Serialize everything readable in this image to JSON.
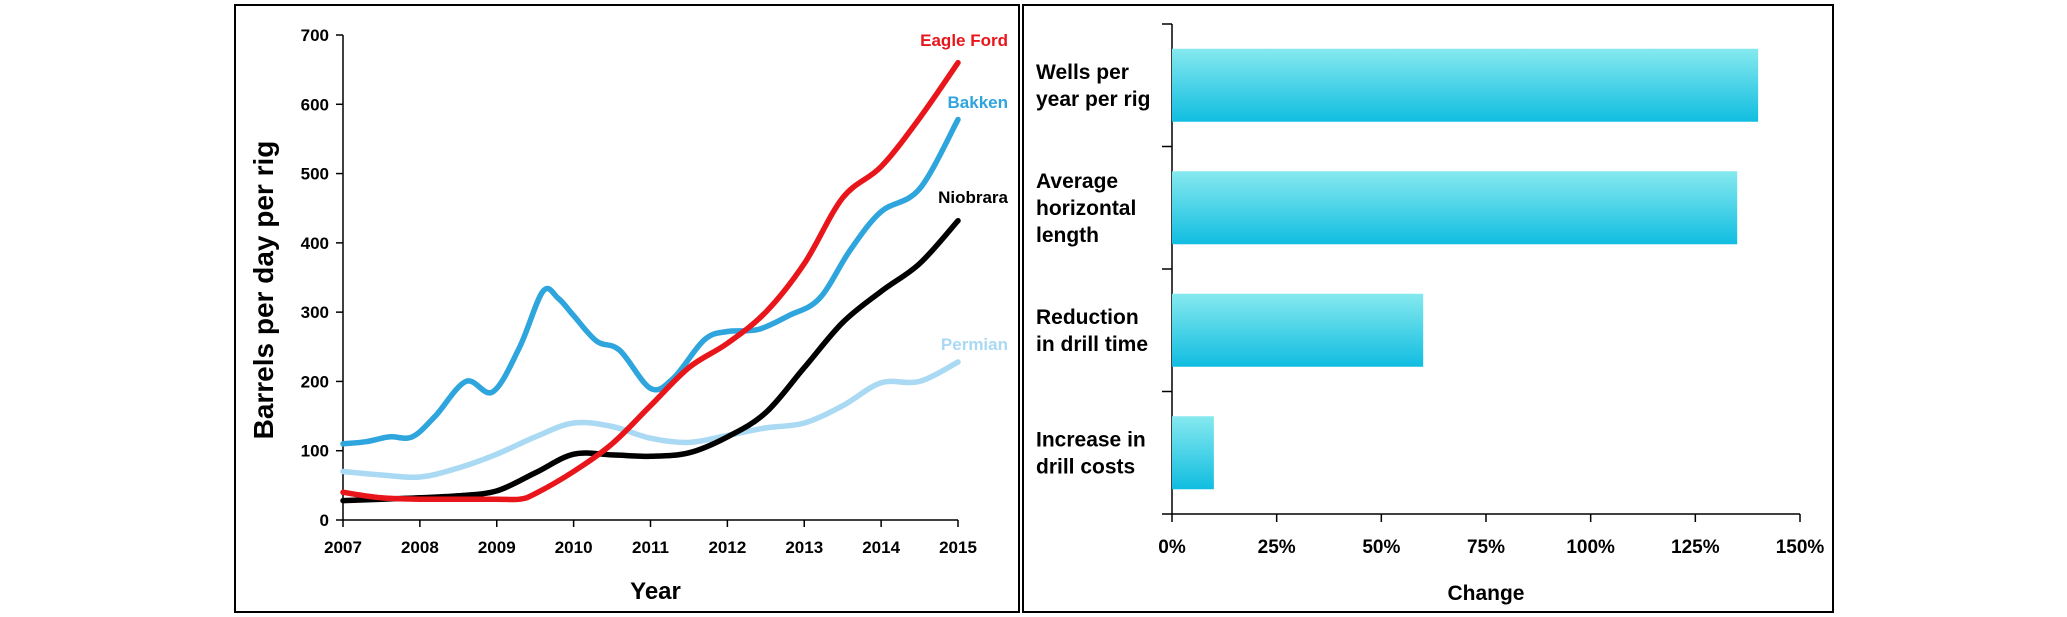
{
  "chart_data": [
    {
      "type": "line",
      "title": "",
      "xlabel": "Year",
      "ylabel": "Barrels per day per rig",
      "xlim": [
        2007,
        2015
      ],
      "ylim": [
        0,
        700
      ],
      "x_ticks": [
        "2007",
        "2008",
        "2009",
        "2010",
        "2011",
        "2012",
        "2013",
        "2014",
        "2015"
      ],
      "y_ticks": [
        "0",
        "100",
        "200",
        "300",
        "400",
        "500",
        "600",
        "700"
      ],
      "grid": false,
      "legend": "series labels at line ends (right)",
      "series": [
        {
          "name": "Eagle Ford",
          "color": "#e8161b",
          "x": [
            2007,
            2007.5,
            2008,
            2008.5,
            2009,
            2009.3,
            2009.5,
            2010,
            2010.5,
            2011,
            2011.5,
            2012,
            2012.5,
            2013,
            2013.5,
            2014,
            2014.5,
            2015
          ],
          "y": [
            40,
            32,
            30,
            30,
            30,
            30,
            38,
            70,
            110,
            165,
            220,
            255,
            300,
            370,
            465,
            510,
            580,
            660
          ]
        },
        {
          "name": "Bakken",
          "color": "#2ea5dd",
          "x": [
            2007,
            2007.3,
            2007.6,
            2007.9,
            2008.2,
            2008.6,
            2008.95,
            2009.3,
            2009.6,
            2009.8,
            2010,
            2010.3,
            2010.6,
            2011,
            2011.3,
            2011.7,
            2012,
            2012.4,
            2012.8,
            2013.2,
            2013.6,
            2014,
            2014.5,
            2015
          ],
          "y": [
            110,
            113,
            120,
            120,
            150,
            200,
            185,
            250,
            330,
            320,
            295,
            258,
            245,
            190,
            205,
            260,
            272,
            275,
            295,
            320,
            390,
            445,
            478,
            578
          ]
        },
        {
          "name": "Niobrara",
          "color": "#000000",
          "x": [
            2007,
            2007.5,
            2008,
            2008.5,
            2009,
            2009.5,
            2010,
            2010.5,
            2011,
            2011.5,
            2012,
            2012.5,
            2013,
            2013.5,
            2014,
            2014.5,
            2015
          ],
          "y": [
            28,
            30,
            32,
            35,
            42,
            68,
            95,
            94,
            92,
            97,
            120,
            155,
            220,
            285,
            330,
            370,
            432
          ]
        },
        {
          "name": "Permian",
          "color": "#a9d9f3",
          "x": [
            2007,
            2007.5,
            2008,
            2008.5,
            2009,
            2009.5,
            2010,
            2010.5,
            2011,
            2011.5,
            2012,
            2012.5,
            2013,
            2013.5,
            2014,
            2014.5,
            2015
          ],
          "y": [
            70,
            65,
            62,
            75,
            95,
            120,
            140,
            135,
            118,
            112,
            122,
            133,
            140,
            165,
            198,
            200,
            228
          ]
        }
      ]
    },
    {
      "type": "bar",
      "orientation": "horizontal",
      "title": "",
      "xlabel": "Change",
      "ylabel": "",
      "xlim": [
        0,
        150
      ],
      "x_ticks": [
        "0%",
        "25%",
        "50%",
        "75%",
        "100%",
        "125%",
        "150%"
      ],
      "bar_color": "#1ec2e0",
      "categories": [
        [
          "Wells per",
          "year per rig"
        ],
        [
          "Average",
          "horizontal",
          "length"
        ],
        [
          "Reduction",
          "in drill time"
        ],
        [
          "Increase in",
          "drill costs"
        ]
      ],
      "values": [
        140,
        135,
        60,
        10
      ]
    }
  ]
}
